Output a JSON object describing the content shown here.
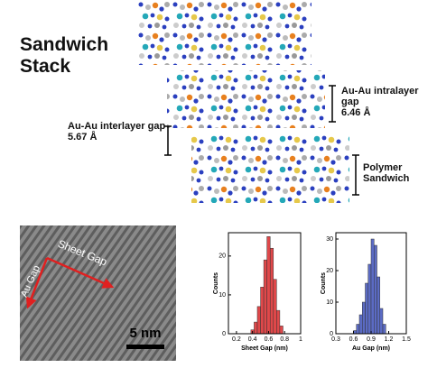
{
  "figure": {
    "title": "Sandwich Stack",
    "intralayer": {
      "label": "Au-Au intralayer gap",
      "value": "6.46 Å"
    },
    "interlayer": {
      "label": "Au-Au interlayer gap",
      "value": "5.67 Å"
    },
    "polymer": "Polymer Sandwich",
    "tem": {
      "sheet_gap": "Sheet Gap",
      "au_gap": "Au Gap",
      "scale": "5 nm"
    }
  },
  "chart_data": [
    {
      "type": "histogram",
      "xlabel": "Sheet Gap (nm)",
      "ylabel": "Counts",
      "color": "#e0484a",
      "bins": [
        0.38,
        0.42,
        0.46,
        0.5,
        0.54,
        0.58,
        0.62,
        0.66,
        0.7,
        0.74,
        0.78
      ],
      "values": [
        1,
        3,
        7,
        12,
        19,
        25,
        22,
        14,
        6,
        2
      ],
      "xlim": [
        0.1,
        1.0
      ],
      "xticks": [
        0.2,
        0.4,
        0.6,
        0.8,
        1.0
      ],
      "ylim": [
        0,
        26
      ],
      "yticks": [
        0,
        10,
        20
      ]
    },
    {
      "type": "histogram",
      "xlabel": "Au Gap (nm)",
      "ylabel": "Counts",
      "color": "#5b6bc4",
      "bins": [
        0.6,
        0.65,
        0.7,
        0.75,
        0.8,
        0.85,
        0.9,
        0.95,
        1.0,
        1.05,
        1.1,
        1.15
      ],
      "values": [
        1,
        3,
        6,
        10,
        16,
        22,
        30,
        28,
        18,
        8,
        3
      ],
      "xlim": [
        0.3,
        1.5
      ],
      "xticks": [
        0.3,
        0.6,
        0.9,
        1.2,
        1.5
      ],
      "ylim": [
        0,
        32
      ],
      "yticks": [
        0,
        10,
        20,
        30
      ]
    }
  ]
}
